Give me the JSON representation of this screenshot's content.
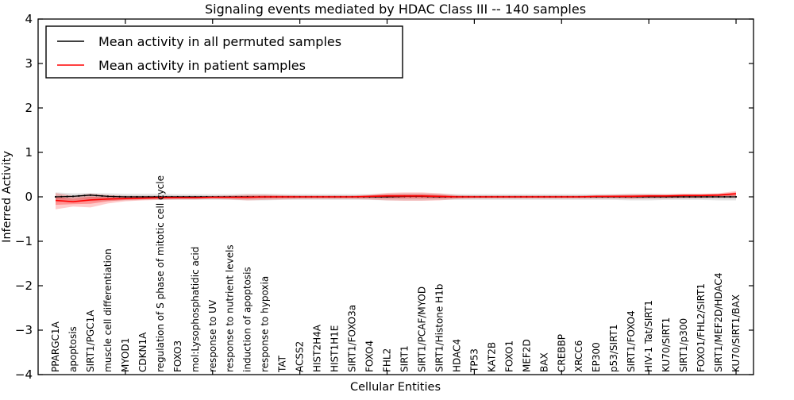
{
  "figure": {
    "title": "Signaling events mediated by HDAC Class III -- 140 samples",
    "xlabel": "Cellular Entities",
    "ylabel": "Inferred Activity"
  },
  "legend": {
    "entries": [
      {
        "label": "Mean activity in all permuted samples",
        "color": "#000000"
      },
      {
        "label": "Mean activity in patient samples",
        "color": "#ff0000"
      }
    ]
  },
  "chart_data": {
    "type": "line",
    "title": "Signaling events mediated by HDAC Class III -- 140 samples",
    "xlabel": "Cellular Entities",
    "ylabel": "Inferred Activity",
    "xlim": [
      0,
      41
    ],
    "ylim": [
      -4,
      4
    ],
    "yticks": [
      -4,
      -3,
      -2,
      -1,
      0,
      1,
      2,
      3,
      4
    ],
    "xticks": [
      5,
      10,
      15,
      20,
      25,
      30,
      35,
      40
    ],
    "grid": false,
    "legend_position": "upper left",
    "categories": [
      "PPARGC1A",
      "apoptosis",
      "SIRT1/PGC1A",
      "muscle cell differentiation",
      "MYOD1",
      "CDKN1A",
      "regulation of S phase of mitotic cell cycle",
      "FOXO3",
      "mol:Lysophosphatidic acid",
      "response to UV",
      "response to nutrient levels",
      "induction of apoptosis",
      "response to hypoxia",
      "TAT",
      "ACSS2",
      "HIST2H4A",
      "HIST1H1E",
      "SIRT1/FOXO3a",
      "FOXO4",
      "FHL2",
      "SIRT1",
      "SIRT1/PCAF/MYOD",
      "SIRT1/Histone H1b",
      "HDAC4",
      "TP53",
      "KAT2B",
      "FOXO1",
      "MEF2D",
      "BAX",
      "CREBBP",
      "XRCC6",
      "EP300",
      "p53/SIRT1",
      "SIRT1/FOXO4",
      "HIV-1 Tat/SIRT1",
      "KU70/SIRT1",
      "SIRT1/p300",
      "FOXO1/FHL2/SIRT1",
      "SIRT1/MEF2D/HDAC4",
      "KU70/SIRT1/BAX"
    ],
    "series": [
      {
        "name": "Mean activity in all permuted samples",
        "color": "#000000",
        "marker": "dots",
        "band_color": "#888888",
        "values": [
          0.0,
          0.01,
          0.04,
          0.01,
          0.0,
          0.0,
          0.0,
          0.0,
          0.0,
          0.0,
          0.0,
          0.0,
          0.0,
          0.0,
          0.0,
          0.0,
          0.0,
          0.0,
          0.0,
          0.0,
          0.01,
          0.01,
          0.0,
          0.0,
          0.0,
          0.0,
          0.0,
          0.0,
          0.0,
          0.0,
          0.0,
          0.0,
          0.0,
          0.0,
          0.0,
          0.0,
          0.0,
          0.0,
          0.0,
          0.0
        ],
        "band_hi": [
          0.1,
          0.08,
          0.09,
          0.08,
          0.07,
          0.07,
          0.07,
          0.06,
          0.06,
          0.06,
          0.06,
          0.07,
          0.07,
          0.06,
          0.06,
          0.06,
          0.06,
          0.06,
          0.06,
          0.07,
          0.08,
          0.08,
          0.07,
          0.06,
          0.06,
          0.06,
          0.06,
          0.06,
          0.06,
          0.06,
          0.06,
          0.06,
          0.06,
          0.07,
          0.07,
          0.06,
          0.06,
          0.06,
          0.07,
          0.07
        ],
        "band_lo": [
          -0.12,
          -0.09,
          -0.1,
          -0.09,
          -0.08,
          -0.07,
          -0.07,
          -0.07,
          -0.07,
          -0.07,
          -0.07,
          -0.08,
          -0.08,
          -0.07,
          -0.07,
          -0.07,
          -0.07,
          -0.07,
          -0.07,
          -0.08,
          -0.08,
          -0.08,
          -0.07,
          -0.07,
          -0.07,
          -0.07,
          -0.07,
          -0.07,
          -0.07,
          -0.07,
          -0.07,
          -0.07,
          -0.07,
          -0.08,
          -0.08,
          -0.07,
          -0.07,
          -0.07,
          -0.08,
          -0.08
        ]
      },
      {
        "name": "Mean activity in patient samples",
        "color": "#ff0000",
        "marker": "none",
        "band_color": "#ff0000",
        "values": [
          -0.08,
          -0.11,
          -0.07,
          -0.05,
          -0.04,
          -0.03,
          -0.02,
          -0.02,
          -0.02,
          -0.01,
          -0.01,
          -0.01,
          0.0,
          0.0,
          0.0,
          0.0,
          0.0,
          0.0,
          0.01,
          0.02,
          0.02,
          0.02,
          0.01,
          0.0,
          0.0,
          0.0,
          0.0,
          0.0,
          0.0,
          0.0,
          0.0,
          0.01,
          0.01,
          0.01,
          0.02,
          0.02,
          0.03,
          0.03,
          0.04,
          0.07
        ],
        "band_hi": [
          0.09,
          0.02,
          0.07,
          0.04,
          0.02,
          0.02,
          0.02,
          0.02,
          0.02,
          0.02,
          0.03,
          0.05,
          0.05,
          0.04,
          0.03,
          0.03,
          0.03,
          0.03,
          0.05,
          0.09,
          0.1,
          0.1,
          0.08,
          0.04,
          0.03,
          0.03,
          0.03,
          0.03,
          0.03,
          0.03,
          0.03,
          0.04,
          0.05,
          0.06,
          0.06,
          0.06,
          0.07,
          0.07,
          0.08,
          0.13
        ],
        "band_lo": [
          -0.28,
          -0.22,
          -0.24,
          -0.15,
          -0.1,
          -0.08,
          -0.07,
          -0.06,
          -0.06,
          -0.05,
          -0.06,
          -0.08,
          -0.07,
          -0.06,
          -0.05,
          -0.05,
          -0.05,
          -0.05,
          -0.06,
          -0.08,
          -0.09,
          -0.09,
          -0.08,
          -0.05,
          -0.04,
          -0.04,
          -0.04,
          -0.04,
          -0.04,
          -0.04,
          -0.04,
          -0.04,
          -0.04,
          -0.05,
          -0.04,
          -0.04,
          -0.03,
          -0.03,
          -0.02,
          -0.02
        ]
      }
    ]
  }
}
